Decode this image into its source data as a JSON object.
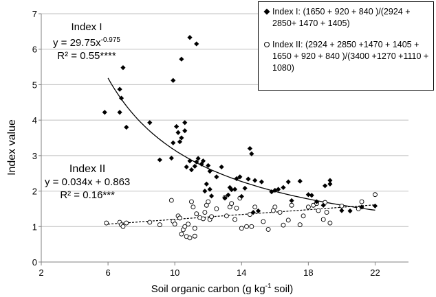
{
  "chart_data": {
    "type": "scatter",
    "title": "",
    "xlabel_main": "Soil organic carbon (g kg",
    "xlabel_sup": "-1",
    "xlabel_tail": " soil)",
    "ylabel": "Index value",
    "xlim": [
      2,
      24
    ],
    "ylim": [
      0,
      7
    ],
    "xticks": [
      2,
      6,
      10,
      14,
      18,
      22
    ],
    "yticks": [
      0,
      1,
      2,
      3,
      4,
      5,
      6,
      7
    ],
    "legend": {
      "placement": "top-right",
      "entries": [
        {
          "marker": "filled-diamond",
          "label": "Index I: (1650 + 920 + 840 )/(2924 + 2850+ 1470 + 1405)"
        },
        {
          "marker": "open-circle",
          "label": "Index II: (2924 + 2850 +1470 + 1405 + 1650 + 920 + 840 )/(3400 +1270 +1110 + 1080)"
        }
      ]
    },
    "annotations": {
      "index1": {
        "name": "Index I",
        "eq_main": "y = 29.75x",
        "eq_sup": "-0.975",
        "r2": "R² = 0.55****"
      },
      "index2": {
        "name": "Index II",
        "eq": "y = 0.034x + 0.863",
        "r2": "R² = 0.16***"
      }
    },
    "series": [
      {
        "name": "Index I",
        "marker": "filled-diamond",
        "color": "#000000",
        "trend": {
          "type": "power",
          "a": 29.75,
          "b": -0.975,
          "x_range": [
            6,
            22
          ]
        },
        "points": [
          [
            5.8,
            4.22
          ],
          [
            6.7,
            4.22
          ],
          [
            6.7,
            4.87
          ],
          [
            6.8,
            4.62
          ],
          [
            6.9,
            5.48
          ],
          [
            7.1,
            3.8
          ],
          [
            8.5,
            3.93
          ],
          [
            9.1,
            2.88
          ],
          [
            9.8,
            2.93
          ],
          [
            9.9,
            5.12
          ],
          [
            9.9,
            3.36
          ],
          [
            10.1,
            3.82
          ],
          [
            10.2,
            3.65
          ],
          [
            10.3,
            3.39
          ],
          [
            10.4,
            5.72
          ],
          [
            10.4,
            3.5
          ],
          [
            10.6,
            3.93
          ],
          [
            10.6,
            3.7
          ],
          [
            10.7,
            2.68
          ],
          [
            10.9,
            6.33
          ],
          [
            10.9,
            2.85
          ],
          [
            11.0,
            2.6
          ],
          [
            11.2,
            2.7
          ],
          [
            11.3,
            6.15
          ],
          [
            11.3,
            2.82
          ],
          [
            11.4,
            2.92
          ],
          [
            11.6,
            2.76
          ],
          [
            11.7,
            2.85
          ],
          [
            11.8,
            2.0
          ],
          [
            11.9,
            2.2
          ],
          [
            12.0,
            2.72
          ],
          [
            12.1,
            2.56
          ],
          [
            12.1,
            2.05
          ],
          [
            12.2,
            1.86
          ],
          [
            12.5,
            2.4
          ],
          [
            12.8,
            2.68
          ],
          [
            13.0,
            1.8
          ],
          [
            13.2,
            1.89
          ],
          [
            13.3,
            2.1
          ],
          [
            13.4,
            2.04
          ],
          [
            13.6,
            2.05
          ],
          [
            13.7,
            2.35
          ],
          [
            13.9,
            2.4
          ],
          [
            14.0,
            1.85
          ],
          [
            14.2,
            2.08
          ],
          [
            14.4,
            2.34
          ],
          [
            14.5,
            3.2
          ],
          [
            14.6,
            3.05
          ],
          [
            14.7,
            1.4
          ],
          [
            14.8,
            2.3
          ],
          [
            15.0,
            1.44
          ],
          [
            15.2,
            2.26
          ],
          [
            15.8,
            1.98
          ],
          [
            16.0,
            2.02
          ],
          [
            16.2,
            2.05
          ],
          [
            16.5,
            2.1
          ],
          [
            16.8,
            2.26
          ],
          [
            17.0,
            1.73
          ],
          [
            17.5,
            2.28
          ],
          [
            18.0,
            1.9
          ],
          [
            18.2,
            1.88
          ],
          [
            18.5,
            1.7
          ],
          [
            18.9,
            1.6
          ],
          [
            19.0,
            2.15
          ],
          [
            19.3,
            2.3
          ],
          [
            19.3,
            2.2
          ],
          [
            20.0,
            1.45
          ],
          [
            20.5,
            1.44
          ],
          [
            21.2,
            1.55
          ],
          [
            22.0,
            1.58
          ]
        ]
      },
      {
        "name": "Index II",
        "marker": "open-circle",
        "color": "#000000",
        "trend": {
          "type": "linear",
          "slope": 0.034,
          "intercept": 0.863,
          "x_range": [
            6,
            22
          ]
        },
        "points": [
          [
            5.9,
            1.1
          ],
          [
            6.7,
            1.12
          ],
          [
            6.8,
            1.05
          ],
          [
            6.9,
            1.0
          ],
          [
            7.1,
            1.1
          ],
          [
            8.5,
            1.12
          ],
          [
            9.1,
            1.05
          ],
          [
            9.8,
            1.74
          ],
          [
            9.9,
            1.15
          ],
          [
            10.0,
            1.07
          ],
          [
            10.2,
            1.3
          ],
          [
            10.3,
            1.24
          ],
          [
            10.4,
            0.79
          ],
          [
            10.5,
            0.91
          ],
          [
            10.6,
            1.0
          ],
          [
            10.7,
            0.72
          ],
          [
            10.8,
            1.07
          ],
          [
            10.9,
            0.68
          ],
          [
            11.0,
            1.7
          ],
          [
            11.1,
            1.55
          ],
          [
            11.2,
            0.95
          ],
          [
            11.2,
            0.73
          ],
          [
            11.3,
            1.36
          ],
          [
            11.5,
            1.25
          ],
          [
            11.7,
            1.22
          ],
          [
            11.8,
            1.4
          ],
          [
            11.9,
            1.6
          ],
          [
            12.0,
            1.7
          ],
          [
            12.1,
            1.2
          ],
          [
            12.2,
            1.28
          ],
          [
            12.5,
            1.5
          ],
          [
            13.0,
            1.82
          ],
          [
            13.1,
            1.3
          ],
          [
            13.3,
            1.55
          ],
          [
            13.4,
            1.65
          ],
          [
            13.6,
            1.2
          ],
          [
            13.7,
            1.52
          ],
          [
            13.9,
            1.8
          ],
          [
            14.0,
            0.95
          ],
          [
            14.3,
            1.0
          ],
          [
            14.5,
            1.34
          ],
          [
            14.6,
            1.0
          ],
          [
            14.8,
            1.55
          ],
          [
            15.3,
            1.14
          ],
          [
            15.6,
            0.92
          ],
          [
            15.9,
            1.45
          ],
          [
            16.0,
            1.55
          ],
          [
            16.3,
            1.4
          ],
          [
            16.5,
            1.04
          ],
          [
            16.8,
            1.18
          ],
          [
            17.0,
            1.6
          ],
          [
            17.5,
            1.05
          ],
          [
            17.7,
            1.3
          ],
          [
            18.0,
            1.55
          ],
          [
            18.3,
            1.6
          ],
          [
            18.5,
            1.65
          ],
          [
            18.6,
            1.45
          ],
          [
            18.9,
            1.2
          ],
          [
            19.0,
            1.68
          ],
          [
            19.1,
            1.4
          ],
          [
            19.3,
            1.1
          ],
          [
            20.0,
            1.58
          ],
          [
            21.0,
            1.5
          ],
          [
            21.2,
            1.7
          ],
          [
            22.0,
            1.9
          ]
        ]
      }
    ]
  }
}
